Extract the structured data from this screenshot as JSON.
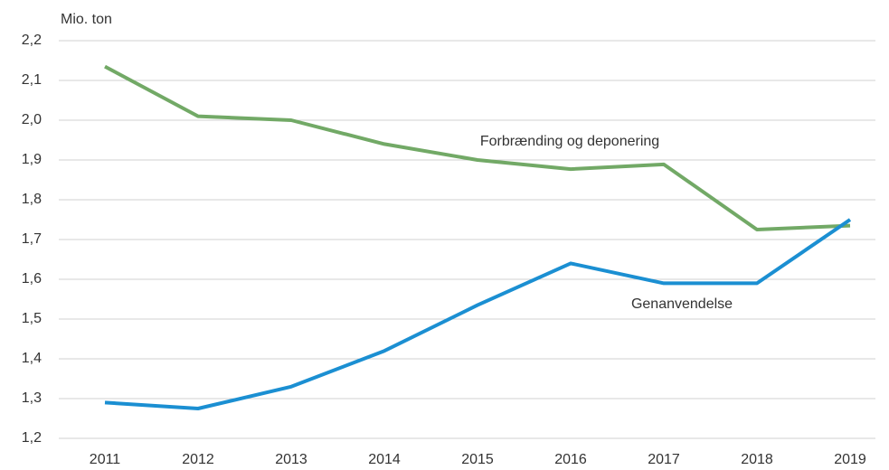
{
  "chart_data": {
    "type": "line",
    "y_label": "Mio. ton",
    "categories": [
      "2011",
      "2012",
      "2013",
      "2014",
      "2015",
      "2016",
      "2017",
      "2018",
      "2019"
    ],
    "series": [
      {
        "name": "Forbrænding og deponering",
        "color": "#72a966",
        "values": [
          2.135,
          2.01,
          2.0,
          1.94,
          1.9,
          1.877,
          1.889,
          1.725,
          1.735
        ]
      },
      {
        "name": "Genanvendelse",
        "color": "#1b8fd2",
        "values": [
          1.29,
          1.275,
          1.33,
          1.42,
          1.535,
          1.64,
          1.59,
          1.59,
          1.75
        ]
      }
    ],
    "ylim": [
      1.2,
      2.2
    ],
    "yticks": [
      {
        "value": 1.2,
        "label": "1,2"
      },
      {
        "value": 1.3,
        "label": "1,3"
      },
      {
        "value": 1.4,
        "label": "1,4"
      },
      {
        "value": 1.5,
        "label": "1,5"
      },
      {
        "value": 1.6,
        "label": "1,6"
      },
      {
        "value": 1.7,
        "label": "1,7"
      },
      {
        "value": 1.8,
        "label": "1,8"
      },
      {
        "value": 1.9,
        "label": "1,9"
      },
      {
        "value": 2.0,
        "label": "2,0"
      },
      {
        "value": 2.1,
        "label": "2,1"
      },
      {
        "value": 2.2,
        "label": "2,2"
      }
    ],
    "grid": true
  }
}
